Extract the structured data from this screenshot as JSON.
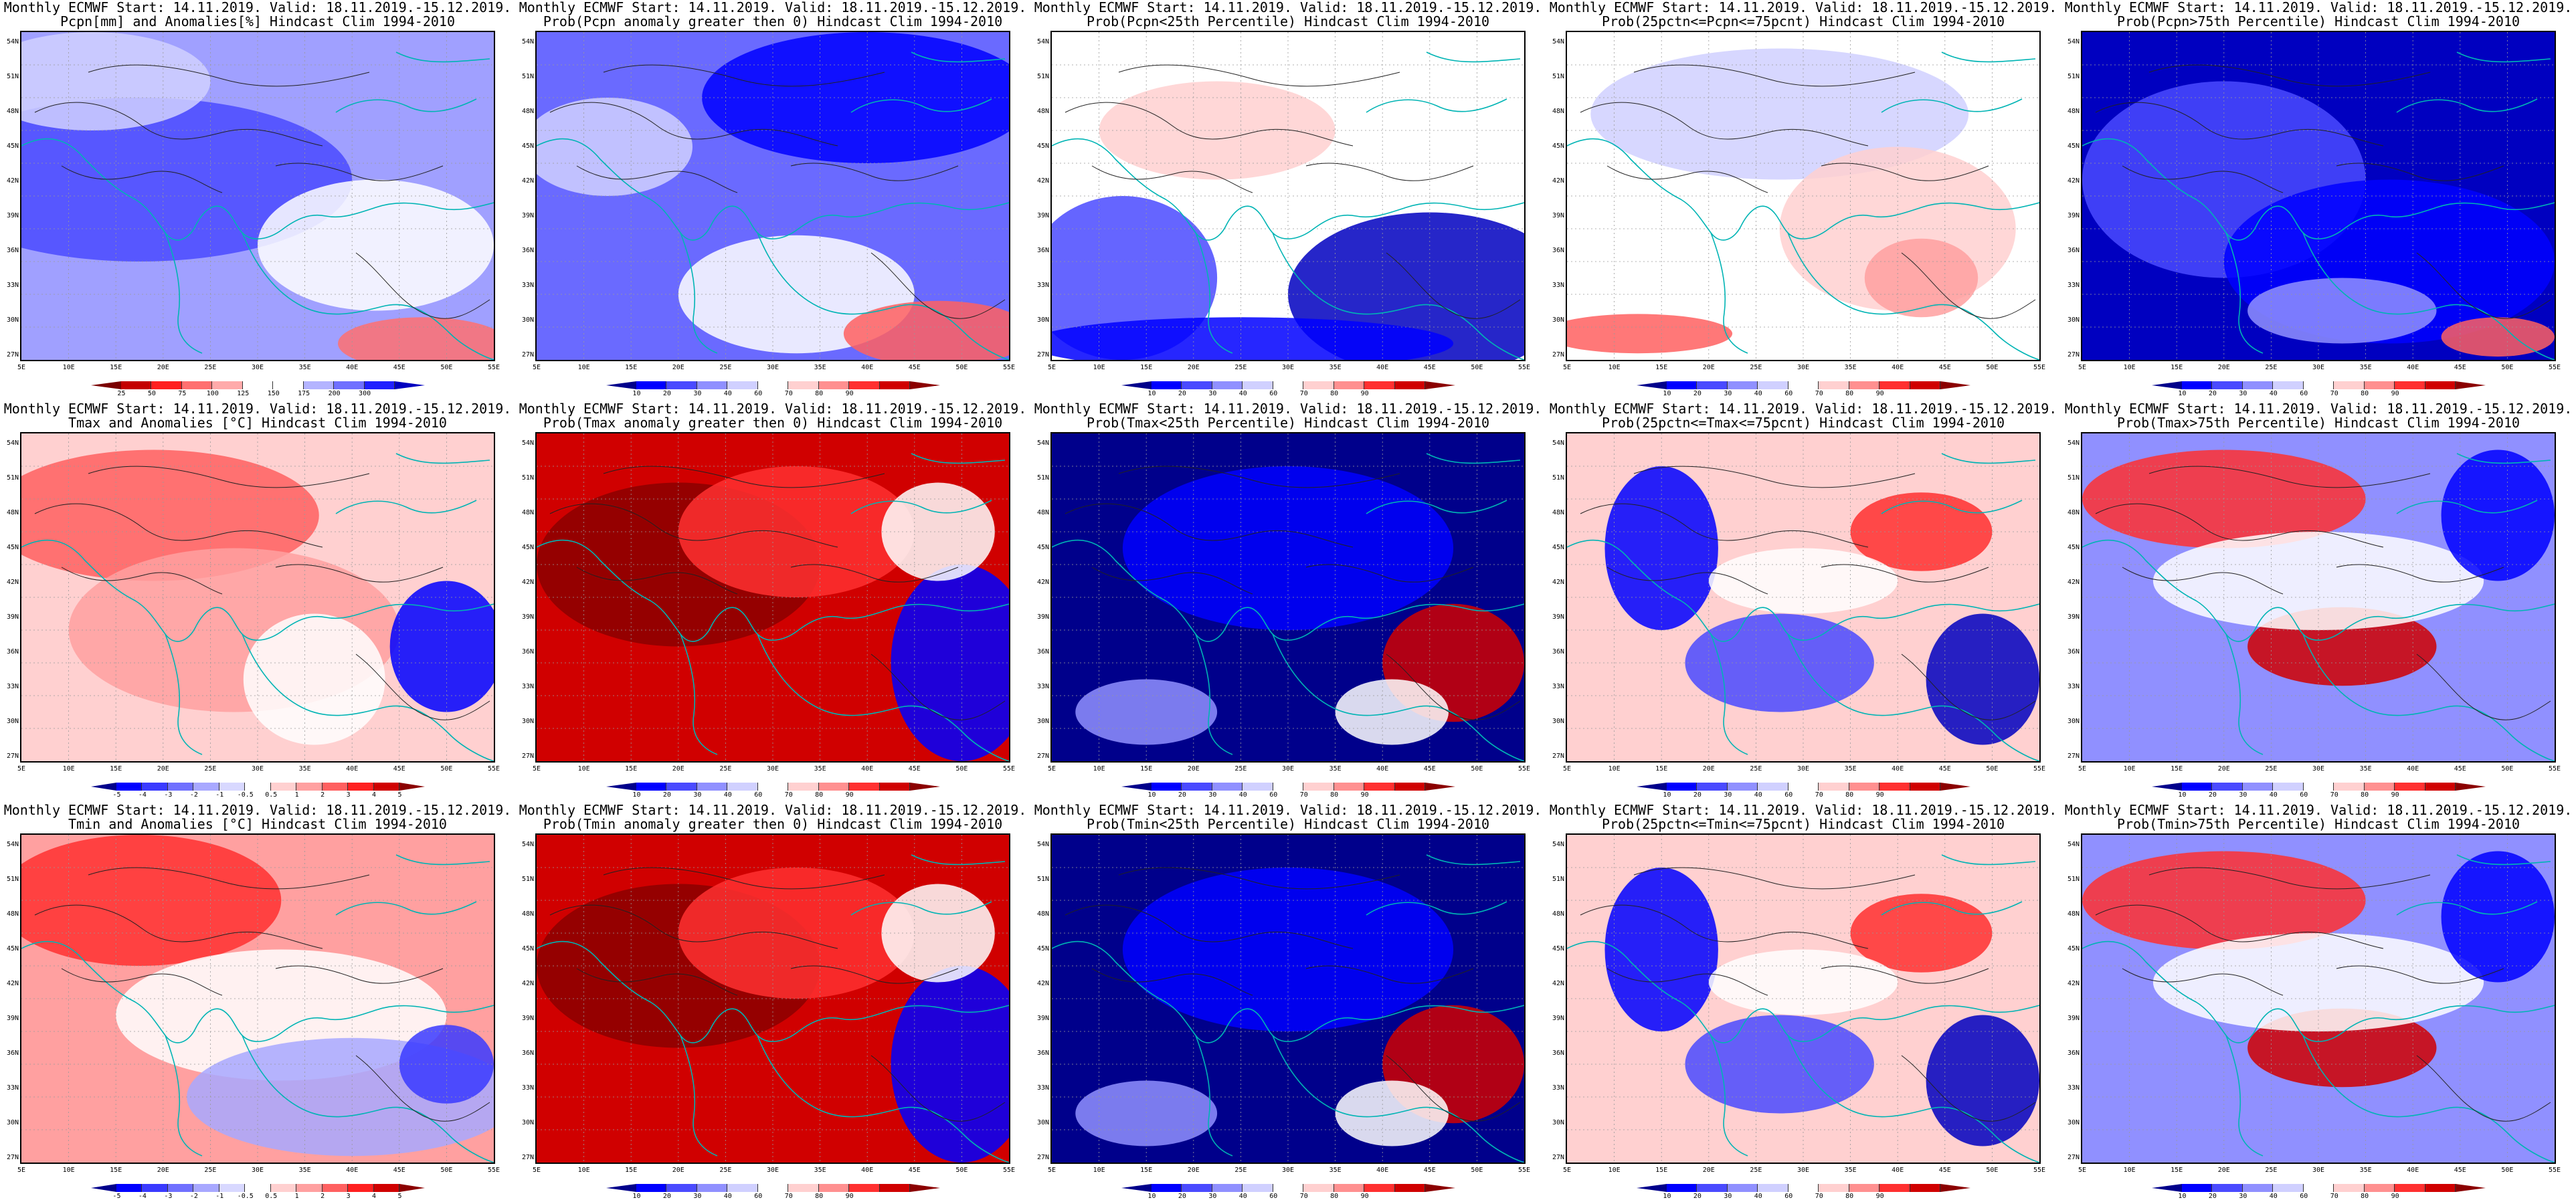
{
  "figure_title": "Monthly ECMWF Start: 14.11.2019. Valid: 18.11.2019.-15.12.2019.",
  "lat_labels": [
    "54N",
    "51N",
    "48N",
    "45N",
    "42N",
    "39N",
    "36N",
    "33N",
    "30N",
    "27N"
  ],
  "lon_labels": [
    "5E",
    "10E",
    "15E",
    "20E",
    "25E",
    "30E",
    "35E",
    "40E",
    "45E",
    "50E",
    "55E"
  ],
  "scales": {
    "precip_anom": {
      "ticks": [
        "25",
        "50",
        "75",
        "100",
        "125",
        "150",
        "175",
        "200",
        "300"
      ],
      "colors": [
        "#7a0000",
        "#c40000",
        "#ff2020",
        "#ff7070",
        "#ffaaaa",
        "#ffffff",
        "#ffffff",
        "#b4b4ff",
        "#7070ff",
        "#2020ff",
        "#0000c0"
      ]
    },
    "temp_anom": {
      "ticks": [
        "-5",
        "-4",
        "-3",
        "-2",
        "-1",
        "-0.5",
        "0.5",
        "1",
        "2",
        "3",
        "4",
        "5"
      ],
      "colors": [
        "#00008b",
        "#0000ff",
        "#3a3aff",
        "#7070ff",
        "#a8a8ff",
        "#d8d8ff",
        "#ffffff",
        "#ffd0d0",
        "#ffa0a0",
        "#ff6060",
        "#ff2020",
        "#d00000",
        "#8b0000"
      ]
    },
    "prob": {
      "ticks": [
        "10",
        "20",
        "30",
        "40",
        "60",
        "70",
        "80",
        "90"
      ],
      "colors": [
        "#00008b",
        "#0000ff",
        "#4a4aff",
        "#9090ff",
        "#d0d0ff",
        "#ffffff",
        "#ffd0d0",
        "#ff9090",
        "#ff3030",
        "#d00000",
        "#8b0000"
      ]
    }
  },
  "panels": [
    {
      "line2": "Pcpn[mm] and Anomalies[%] Hindcast Clim 1994-2010",
      "scale": "precip_anom",
      "theme": "mixed_blue"
    },
    {
      "line2": "Prob(Pcpn anomaly greater then 0) Hindcast Clim 1994-2010",
      "scale": "prob",
      "theme": "blue_red_se"
    },
    {
      "line2": "Prob(Pcpn<25th Percentile) Hindcast Clim 1994-2010",
      "scale": "prob",
      "theme": "white_blue"
    },
    {
      "line2": "Prob(25pctn<=Pcpn<=75pcnt) Hindcast Clim 1994-2010",
      "scale": "prob",
      "theme": "pale"
    },
    {
      "line2": "Prob(Pcpn>75th Percentile) Hindcast Clim 1994-2010",
      "scale": "prob",
      "theme": "deep_blue"
    },
    {
      "line2": "Tmax and Anomalies [°C] Hindcast Clim 1994-2010",
      "scale": "temp_anom",
      "theme": "red_west_blue_east"
    },
    {
      "line2": "Prob(Tmax anomaly greater then 0) Hindcast Clim 1994-2010",
      "scale": "prob",
      "theme": "deep_red"
    },
    {
      "line2": "Prob(Tmax<25th Percentile) Hindcast Clim 1994-2010",
      "scale": "prob",
      "theme": "deep_blue_red_se"
    },
    {
      "line2": "Prob(25pctn<=Tmax<=75pcnt) Hindcast Clim 1994-2010",
      "scale": "prob",
      "theme": "patchy"
    },
    {
      "line2": "Prob(Tmax>75th Percentile) Hindcast Clim 1994-2010",
      "scale": "prob",
      "theme": "red_center"
    },
    {
      "line2": "Tmin and Anomalies [°C] Hindcast Clim 1994-2010",
      "scale": "temp_anom",
      "theme": "red_north_blue_south"
    },
    {
      "line2": "Prob(Tmin anomaly greater then 0) Hindcast Clim 1994-2010",
      "scale": "prob",
      "theme": "deep_red"
    },
    {
      "line2": "Prob(Tmin<25th Percentile) Hindcast Clim 1994-2010",
      "scale": "prob",
      "theme": "deep_blue_red_se"
    },
    {
      "line2": "Prob(25pctn<=Tmin<=75pcnt) Hindcast Clim 1994-2010",
      "scale": "prob",
      "theme": "patchy"
    },
    {
      "line2": "Prob(Tmin>75th Percentile) Hindcast Clim 1994-2010",
      "scale": "prob",
      "theme": "red_center"
    }
  ]
}
